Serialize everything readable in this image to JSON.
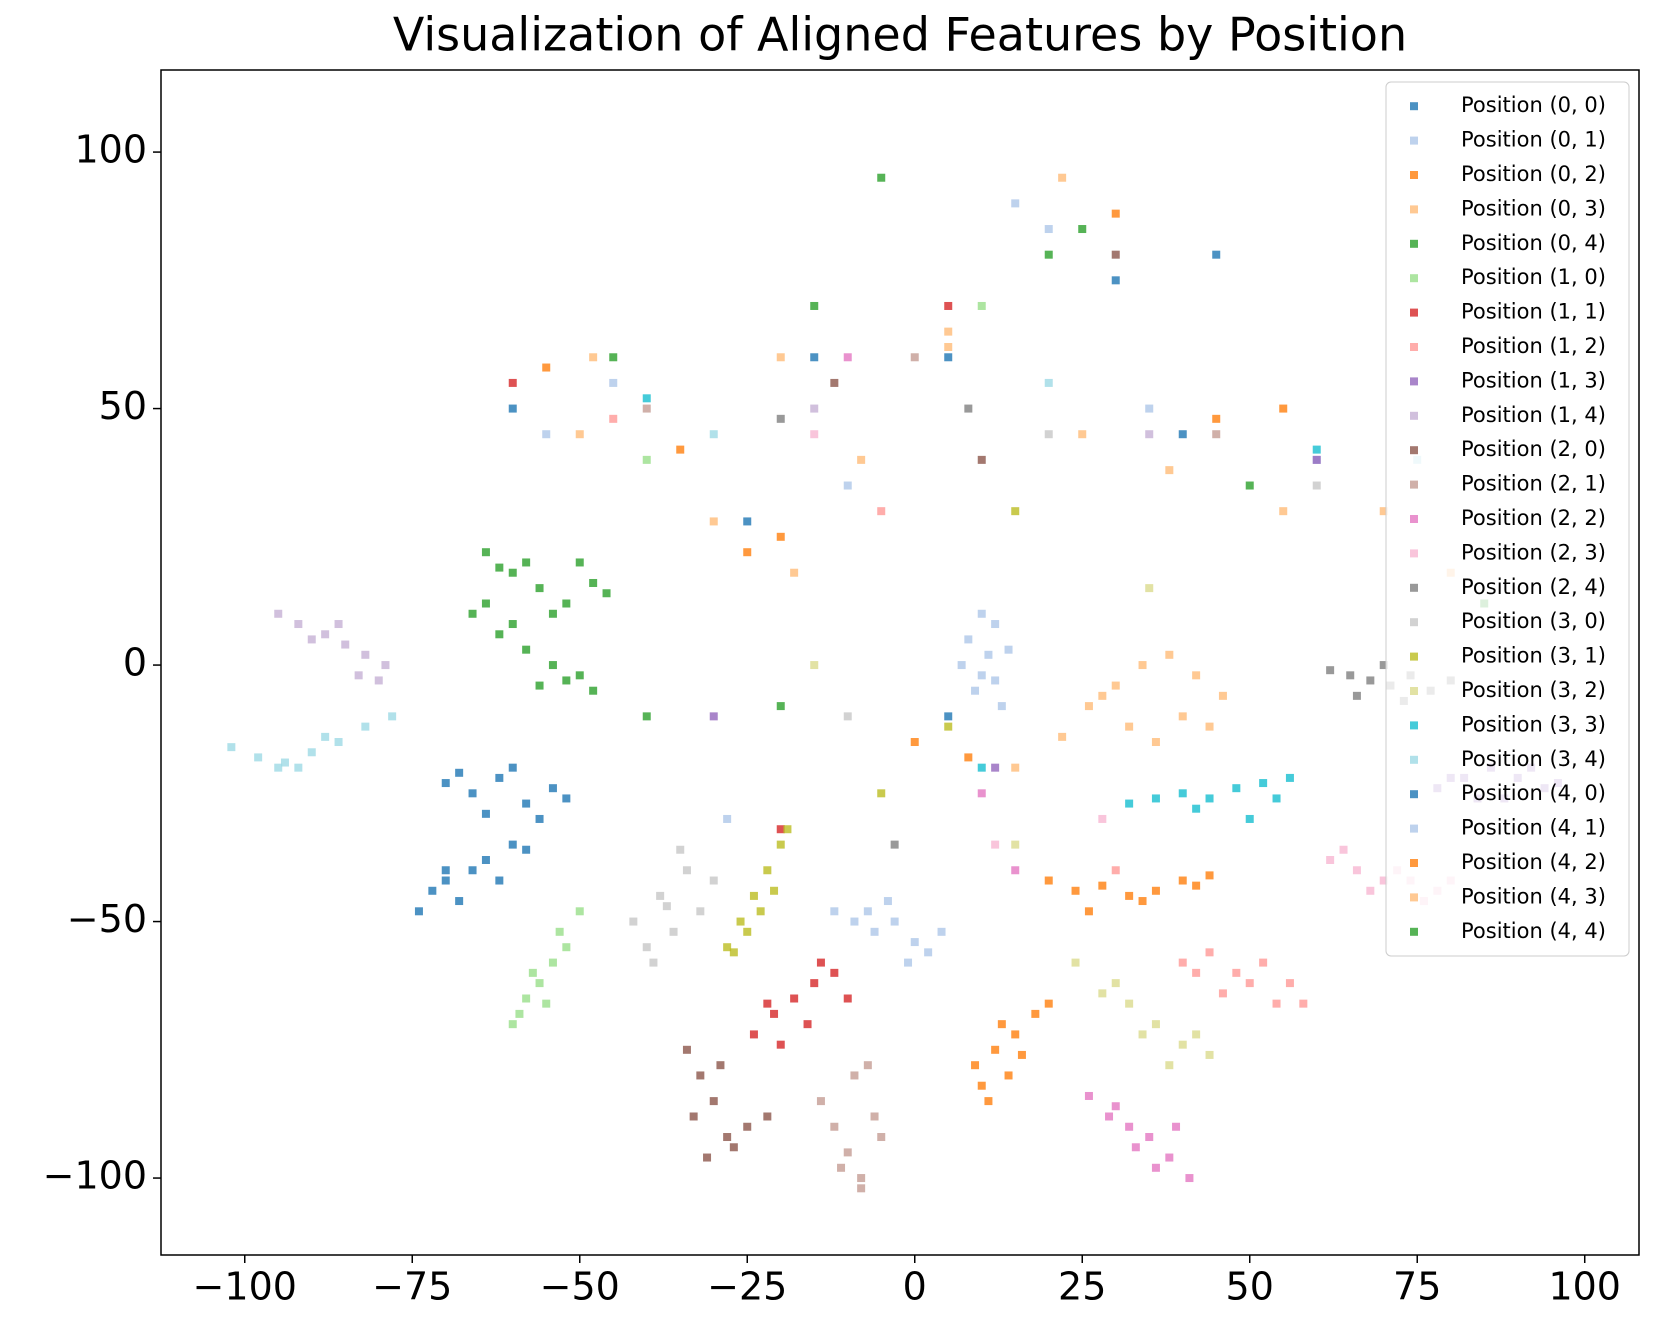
{
  "chart_data": {
    "type": "scatter",
    "title": "Visualization of Aligned Features by Position",
    "xlim": [
      -112.5,
      108.1
    ],
    "ylim": [
      -115,
      116
    ],
    "xticks": [
      {
        "value": -100,
        "label": "−100"
      },
      {
        "value": -75,
        "label": "−75"
      },
      {
        "value": -50,
        "label": "−50"
      },
      {
        "value": -25,
        "label": "−25"
      },
      0,
      25,
      50,
      75,
      100
    ],
    "yticks": [
      {
        "value": -100,
        "label": "−100"
      },
      {
        "value": -50,
        "label": "−50"
      },
      0,
      50,
      100
    ],
    "grid": false,
    "legend": "upper right",
    "marker": "square",
    "series": [
      {
        "name": "Position (0, 0)",
        "color": "#1f77b4",
        "x": [
          -70,
          -66,
          -62,
          -58,
          -54,
          -64,
          -60,
          -56,
          -68,
          -52,
          -60,
          -15,
          5,
          30,
          40
        ],
        "values": [
          -23,
          -25,
          -22,
          -27,
          -24,
          -29,
          -20,
          -30,
          -21,
          -26,
          50,
          60,
          -10,
          75,
          45
        ]
      },
      {
        "name": "Position (0, 1)",
        "color": "#aec7e8",
        "x": [
          8,
          10,
          12,
          9,
          11,
          13,
          7,
          10,
          14,
          12,
          -45,
          -10,
          20,
          35,
          60
        ],
        "values": [
          5,
          -2,
          8,
          -5,
          2,
          -8,
          0,
          10,
          3,
          -3,
          55,
          35,
          85,
          50,
          40
        ]
      },
      {
        "name": "Position (0, 2)",
        "color": "#ff7f0e",
        "x": [
          10,
          12,
          15,
          18,
          14,
          11,
          16,
          20,
          13,
          9,
          -55,
          -25,
          0,
          30,
          45
        ],
        "values": [
          -82,
          -75,
          -72,
          -68,
          -80,
          -85,
          -76,
          -66,
          -70,
          -78,
          58,
          22,
          -15,
          88,
          48
        ]
      },
      {
        "name": "Position (0, 3)",
        "color": "#ffbb78",
        "x": [
          22,
          26,
          30,
          34,
          38,
          42,
          46,
          32,
          36,
          40,
          28,
          44,
          -50,
          -20,
          5,
          25,
          70
        ],
        "values": [
          -14,
          -8,
          -4,
          0,
          2,
          -2,
          -6,
          -12,
          -15,
          -10,
          -6,
          -12,
          45,
          60,
          62,
          45,
          30
        ]
      },
      {
        "name": "Position (0, 4)",
        "color": "#2ca02c",
        "x": [
          -64,
          -60,
          -56,
          -52,
          -48,
          -58,
          -54,
          -50,
          -62,
          -46,
          -45,
          -5,
          25,
          50,
          -20
        ],
        "values": [
          22,
          18,
          15,
          12,
          16,
          20,
          10,
          20,
          19,
          14,
          60,
          95,
          85,
          35,
          -8
        ]
      },
      {
        "name": "Position (1, 0)",
        "color": "#98df8a",
        "x": [
          -60,
          -58,
          -56,
          -54,
          -52,
          -57,
          -55,
          -53,
          -59,
          -50,
          -40,
          10
        ],
        "values": [
          -70,
          -65,
          -62,
          -58,
          -55,
          -60,
          -66,
          -52,
          -68,
          -48,
          40,
          70
        ]
      },
      {
        "name": "Position (1, 1)",
        "color": "#d62728",
        "x": [
          -24,
          -21,
          -18,
          -15,
          -12,
          -20,
          -16,
          -22,
          -14,
          -10,
          -60,
          -20,
          5
        ],
        "values": [
          -72,
          -68,
          -65,
          -62,
          -60,
          -74,
          -70,
          -66,
          -58,
          -65,
          55,
          -32,
          70
        ]
      },
      {
        "name": "Position (1, 2)",
        "color": "#ff9896",
        "x": [
          40,
          44,
          48,
          52,
          56,
          46,
          50,
          54,
          42,
          58,
          -45,
          -5,
          30
        ],
        "values": [
          -58,
          -56,
          -60,
          -58,
          -62,
          -64,
          -62,
          -66,
          -60,
          -66,
          48,
          30,
          -40
        ]
      },
      {
        "name": "Position (1, 3)",
        "color": "#9467bd",
        "x": [
          78,
          82,
          86,
          90,
          94,
          84,
          88,
          80,
          92,
          96,
          -30,
          12,
          60
        ],
        "values": [
          -24,
          -22,
          -20,
          -22,
          -24,
          -26,
          -26,
          -22,
          -20,
          -23,
          -10,
          -20,
          40
        ]
      },
      {
        "name": "Position (1, 4)",
        "color": "#c5b0d5",
        "x": [
          -95,
          -92,
          -88,
          -85,
          -82,
          -79,
          -90,
          -86,
          -83,
          -80,
          -15,
          35
        ],
        "values": [
          10,
          8,
          6,
          4,
          2,
          0,
          5,
          8,
          -2,
          -3,
          50,
          45
        ]
      },
      {
        "name": "Position (2, 0)",
        "color": "#8c564b",
        "x": [
          -34,
          -32,
          -30,
          -28,
          -31,
          -33,
          -29,
          -27,
          -22,
          -25,
          -12,
          10,
          30
        ],
        "values": [
          -75,
          -80,
          -85,
          -92,
          -96,
          -88,
          -78,
          -94,
          -88,
          -90,
          55,
          40,
          80
        ]
      },
      {
        "name": "Position (2, 1)",
        "color": "#c49c94",
        "x": [
          -14,
          -12,
          -10,
          -8,
          -6,
          -9,
          -7,
          -11,
          -5,
          -8,
          -40,
          0,
          45
        ],
        "values": [
          -85,
          -90,
          -95,
          -100,
          -88,
          -80,
          -78,
          -98,
          -92,
          -102,
          50,
          60,
          45
        ]
      },
      {
        "name": "Position (2, 2)",
        "color": "#e377c2",
        "x": [
          26,
          29,
          32,
          35,
          38,
          41,
          33,
          36,
          30,
          39,
          10,
          15,
          -10
        ],
        "values": [
          -84,
          -88,
          -90,
          -92,
          -96,
          -100,
          -94,
          -98,
          -86,
          -90,
          -25,
          -40,
          60
        ]
      },
      {
        "name": "Position (2, 3)",
        "color": "#f7b6d2",
        "x": [
          62,
          66,
          70,
          74,
          78,
          64,
          68,
          72,
          76,
          80,
          28,
          12,
          -15
        ],
        "values": [
          -38,
          -40,
          -42,
          -42,
          -44,
          -36,
          -44,
          -40,
          -46,
          -42,
          -30,
          -35,
          45
        ]
      },
      {
        "name": "Position (2, 4)",
        "color": "#7f7f7f",
        "x": [
          62,
          65,
          68,
          71,
          74,
          77,
          66,
          70,
          73,
          80,
          -20,
          8,
          -3
        ],
        "values": [
          -1,
          -2,
          -3,
          -4,
          -2,
          -5,
          -6,
          0,
          -7,
          -3,
          48,
          50,
          -35
        ]
      },
      {
        "name": "Position (3, 0)",
        "color": "#c7c7c7",
        "x": [
          -42,
          -40,
          -38,
          -36,
          -34,
          -32,
          -39,
          -35,
          -37,
          -30,
          -10,
          20,
          60
        ],
        "values": [
          -50,
          -55,
          -45,
          -52,
          -40,
          -48,
          -58,
          -36,
          -47,
          -42,
          -10,
          45,
          35
        ]
      },
      {
        "name": "Position (3, 1)",
        "color": "#bcbd22",
        "x": [
          -28,
          -26,
          -24,
          -22,
          -20,
          -25,
          -23,
          -21,
          -19,
          -27,
          -5,
          5,
          15
        ],
        "values": [
          -55,
          -50,
          -45,
          -40,
          -35,
          -52,
          -48,
          -44,
          -32,
          -56,
          -25,
          -12,
          30
        ]
      },
      {
        "name": "Position (3, 2)",
        "color": "#dbdb8d",
        "x": [
          24,
          28,
          32,
          36,
          40,
          44,
          34,
          38,
          42,
          30,
          15,
          -15,
          35
        ],
        "values": [
          -58,
          -64,
          -66,
          -70,
          -74,
          -76,
          -72,
          -78,
          -72,
          -62,
          -35,
          0,
          15
        ]
      },
      {
        "name": "Position (3, 3)",
        "color": "#17becf",
        "x": [
          32,
          36,
          40,
          44,
          48,
          52,
          56,
          42,
          50,
          54,
          -40,
          10,
          60
        ],
        "values": [
          -27,
          -26,
          -25,
          -26,
          -24,
          -23,
          -22,
          -28,
          -30,
          -26,
          52,
          -20,
          42
        ]
      },
      {
        "name": "Position (3, 4)",
        "color": "#9edae5",
        "x": [
          -102,
          -98,
          -94,
          -90,
          -86,
          -82,
          -78,
          -92,
          -88,
          -95,
          -30,
          20,
          75
        ],
        "values": [
          -16,
          -18,
          -19,
          -17,
          -15,
          -12,
          -10,
          -20,
          -14,
          -20,
          45,
          55,
          40
        ]
      },
      {
        "name": "Position (4, 0)",
        "color": "#1f77b4",
        "x": [
          -74,
          -72,
          -70,
          -68,
          -66,
          -64,
          -60,
          -62,
          -58,
          -70,
          -25,
          5,
          45
        ],
        "values": [
          -48,
          -44,
          -42,
          -46,
          -40,
          -38,
          -35,
          -42,
          -36,
          -40,
          28,
          60,
          80
        ]
      },
      {
        "name": "Position (4, 1)",
        "color": "#aec7e8",
        "x": [
          -12,
          -9,
          -6,
          -3,
          0,
          2,
          -4,
          -1,
          4,
          -7,
          -28,
          -55,
          15
        ],
        "values": [
          -48,
          -50,
          -52,
          -50,
          -54,
          -56,
          -46,
          -58,
          -52,
          -48,
          -30,
          45,
          90
        ]
      },
      {
        "name": "Position (4, 2)",
        "color": "#ff7f0e",
        "x": [
          20,
          24,
          28,
          32,
          36,
          40,
          44,
          26,
          34,
          42,
          -35,
          -20,
          8,
          55
        ],
        "values": [
          -42,
          -44,
          -43,
          -45,
          -44,
          -42,
          -41,
          -48,
          -46,
          -43,
          42,
          25,
          -18,
          50
        ]
      },
      {
        "name": "Position (4, 3)",
        "color": "#ffbb78",
        "x": [
          -30,
          -18,
          -8,
          5,
          15,
          22,
          38,
          55,
          80,
          -48
        ],
        "values": [
          28,
          18,
          40,
          65,
          -20,
          95,
          38,
          30,
          18,
          60
        ]
      },
      {
        "name": "Position (4, 4)",
        "color": "#2ca02c",
        "x": [
          -66,
          -62,
          -58,
          -54,
          -50,
          -60,
          -56,
          -52,
          -64,
          -48,
          -40,
          -15,
          20,
          85
        ],
        "values": [
          10,
          6,
          3,
          0,
          -2,
          8,
          -4,
          -3,
          12,
          -5,
          -10,
          70,
          80,
          12
        ]
      }
    ]
  }
}
